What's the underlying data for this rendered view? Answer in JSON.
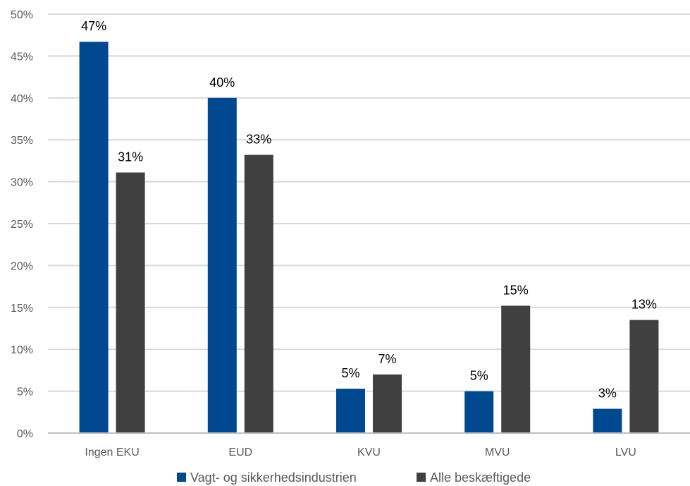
{
  "chart_data": {
    "type": "bar",
    "categories": [
      "Ingen EKU",
      "EUD",
      "KVU",
      "MVU",
      "LVU"
    ],
    "series": [
      {
        "name": "Vagt- og sikkerhedsindustrien",
        "color": "#004990",
        "values": [
          46.7,
          40.0,
          5.3,
          5.0,
          2.9
        ],
        "labels": [
          "47%",
          "40%",
          "5%",
          "5%",
          "3%"
        ]
      },
      {
        "name": "Alle beskæftigede",
        "color": "#404040",
        "values": [
          31.1,
          33.2,
          7.0,
          15.2,
          13.5
        ],
        "labels": [
          "31%",
          "33%",
          "7%",
          "15%",
          "13%"
        ]
      }
    ],
    "y_ticks": [
      "0%",
      "5%",
      "10%",
      "15%",
      "20%",
      "25%",
      "30%",
      "35%",
      "40%",
      "45%",
      "50%"
    ],
    "ylim": [
      0,
      50
    ],
    "grid": true,
    "legend": "bottom",
    "title": "",
    "xlabel": "",
    "ylabel": ""
  }
}
